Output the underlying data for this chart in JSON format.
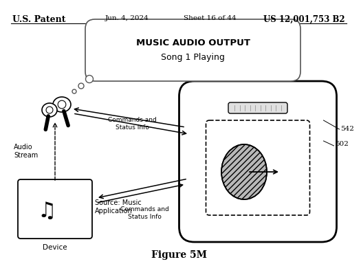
{
  "patent_left": "U.S. Patent",
  "patent_date": "Jun. 4, 2024",
  "patent_sheet": "Sheet 16 of 44",
  "patent_number": "US 12,001,753 B2",
  "bubble_text_line1": "MUSIC AUDIO OUTPUT",
  "bubble_text_line2": "Song 1 Playing",
  "label_542": "542",
  "label_502": "502",
  "label_commands1": "Commands and\nStatus Info",
  "label_commands2": "Commands and\nStatus Info",
  "label_audio": "Audio\nStream",
  "label_source": "Source: Music\nApplication",
  "label_device": "Device",
  "title": "Figure 5M",
  "bg_color": "#ffffff",
  "fg_color": "#000000"
}
